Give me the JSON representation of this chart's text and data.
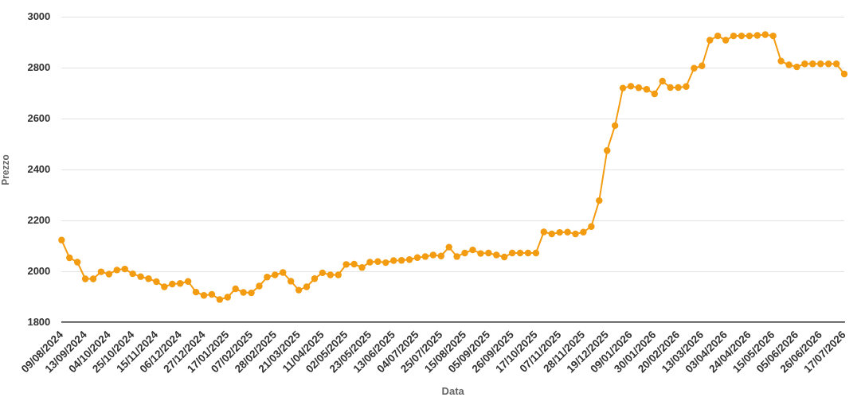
{
  "chart_data": {
    "type": "line",
    "xlabel": "Data",
    "ylabel": "Prezzo",
    "categories": [
      "09/08/2024",
      null,
      null,
      "13/09/2024",
      null,
      null,
      "04/10/2024",
      null,
      null,
      "25/10/2024",
      null,
      null,
      "15/11/2024",
      null,
      null,
      "06/12/2024",
      null,
      null,
      "27/12/2024",
      null,
      null,
      "17/01/2025",
      null,
      null,
      "07/02/2025",
      null,
      null,
      "28/02/2025",
      null,
      null,
      "21/03/2025",
      null,
      null,
      "11/04/2025",
      null,
      null,
      "02/05/2025",
      null,
      null,
      "23/05/2025",
      null,
      null,
      "13/06/2025",
      null,
      null,
      "04/07/2025",
      null,
      null,
      "25/07/2025",
      null,
      null,
      "15/08/2025",
      null,
      null,
      "05/09/2025",
      null,
      null,
      "26/09/2025",
      null,
      null,
      "17/10/2025",
      null,
      null,
      "07/11/2025",
      null,
      null,
      "28/11/2025",
      null,
      null,
      "19/12/2025",
      null,
      null,
      "09/01/2026",
      null,
      null,
      "30/01/2026",
      null,
      null,
      "20/02/2026",
      null,
      null,
      "13/03/2026",
      null,
      null,
      "03/04/2026",
      null,
      null,
      "24/04/2026",
      null,
      null,
      "15/05/2026",
      null,
      null,
      "05/06/2026",
      null,
      null,
      "26/06/2026",
      null,
      null,
      "17/07/2026"
    ],
    "values": [
      2124,
      2054,
      2037,
      1971,
      1971,
      1999,
      1990,
      2006,
      2010,
      1991,
      1980,
      1972,
      1960,
      1940,
      1951,
      1953,
      1961,
      1919,
      1906,
      1910,
      1890,
      1899,
      1932,
      1918,
      1916,
      1943,
      1978,
      1987,
      1996,
      1962,
      1927,
      1940,
      1972,
      1995,
      1987,
      1987,
      2028,
      2029,
      2016,
      2037,
      2039,
      2035,
      2043,
      2044,
      2047,
      2055,
      2059,
      2065,
      2061,
      2096,
      2059,
      2073,
      2085,
      2071,
      2073,
      2065,
      2057,
      2073,
      2073,
      2073,
      2073,
      2156,
      2148,
      2154,
      2155,
      2148,
      2155,
      2177,
      2279,
      2476,
      2574,
      2722,
      2729,
      2723,
      2717,
      2699,
      2749,
      2724,
      2724,
      2728,
      2800,
      2809,
      2910,
      2927,
      2910,
      2927,
      2927,
      2927,
      2929,
      2932,
      2927,
      2828,
      2813,
      2805,
      2817,
      2817,
      2817,
      2817,
      2817,
      2777
    ],
    "color": "#f39c12",
    "ylim": [
      1800,
      3000
    ],
    "yticks": [
      1800,
      2000,
      2200,
      2400,
      2600,
      2800,
      3000
    ],
    "grid": "y",
    "marker": "circle",
    "line_style": "solid"
  }
}
